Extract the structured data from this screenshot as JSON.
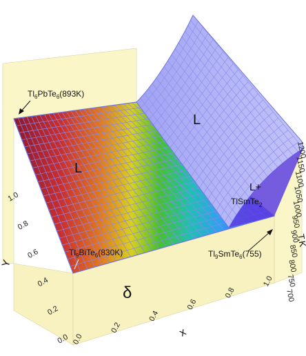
{
  "diagram": {
    "region_labels": {
      "liquid_flat": "L",
      "liquid_surface": "L",
      "two_phase_line1": "L+",
      "two_phase_line2_base": "TlSmTe",
      "two_phase_line2_sub": "2",
      "solid": "δ"
    },
    "point_labels": {
      "pb": {
        "base": "Tl",
        "s1": "6",
        "mid": "PbTe",
        "s2": "6",
        "tail": "(893K)"
      },
      "bi": {
        "base": "Tl",
        "s1": "9",
        "mid": "BiTe",
        "s2": "6",
        "tail": "(830K)"
      },
      "sm": {
        "base": "Tl",
        "s1": "9",
        "mid": "SmTe",
        "s2": "6",
        "tail": "(755)"
      }
    },
    "axes": {
      "x_label": "x",
      "y_label": "Y",
      "z_label": "T,K",
      "y_ticks": [
        "0.0",
        "0.2",
        "0.4",
        "0.6",
        "0.8",
        "1.0"
      ],
      "x_ticks": [
        "0.0",
        "0.2",
        "0.4",
        "0.6",
        "0.8",
        "1.0"
      ],
      "z_ticks": [
        "700",
        "750",
        "800",
        "850",
        "900",
        "950",
        "1000",
        "1050",
        "1100",
        "1150",
        "1200"
      ]
    },
    "colors": {
      "wall": "#fbf6c8",
      "grid": "#7b82e8",
      "surface": "#a8aaf4"
    }
  }
}
